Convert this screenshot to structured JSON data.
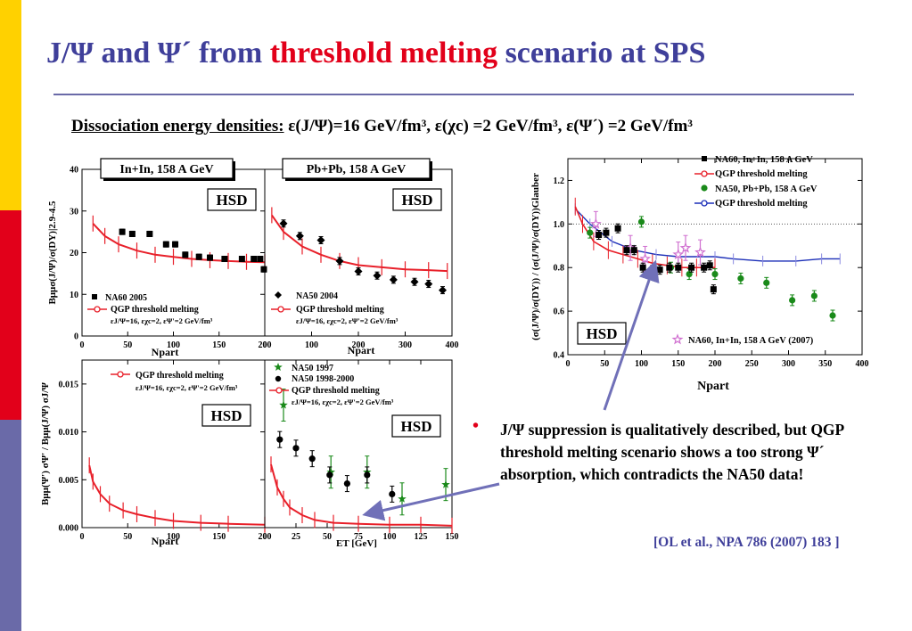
{
  "slide": {
    "title_part1": "J/Ψ and  Ψ´ from ",
    "title_red": "threshold melting",
    "title_part2": " scenario at SPS",
    "subtitle_label": "Dissociation energy densities:",
    "subtitle_values": " ε(J/Ψ)=16  GeV/fm³, ε(χc) =2 GeV/fm³,  ε(Ψ´) =2 GeV/fm³",
    "bullet_text": "J/Ψ suppression is qualitatively described,  but QGP threshold melting scenario shows a too strong Ψ´ absorption, which contradicts the NA50 data!",
    "reference": "[OL et al., NPA 786 (2007) 183 ]",
    "colors": {
      "title": "#3f3f9a",
      "accent": "#e2001a",
      "stripe": [
        "#ffd100",
        "#e2001a",
        "#6a6aa8"
      ],
      "model_line": "#e8202a",
      "glauber_model_line": "#1c2fb8",
      "na50_green": "#1a8a1a",
      "arrow": "#7070b8"
    }
  },
  "chart_data": [
    {
      "id": "inin_jpsi_dy",
      "type": "scatter",
      "panel_label": "In+In, 158 A GeV",
      "hsd_label": "HSD",
      "ylabel": "Bμμσ(J/Ψ)/σ(DY)|2.9-4.5",
      "xlabel": "Npart",
      "xlim": [
        0,
        200
      ],
      "ylim": [
        0,
        40
      ],
      "xticks": [
        0,
        50,
        100,
        150,
        200
      ],
      "yticks": [
        0,
        10,
        20,
        30,
        40
      ],
      "legend": [
        "NA60 2005",
        "QGP threshold melting"
      ],
      "legend_note": "εJ/Ψ=16, εχc=2, εΨ'=2 GeV/fm³",
      "series": [
        {
          "name": "NA60 2005",
          "marker": "square",
          "points": [
            [
              44,
              25
            ],
            [
              55,
              24.5
            ],
            [
              74,
              24.5
            ],
            [
              92,
              22
            ],
            [
              102,
              22
            ],
            [
              113,
              19.5
            ],
            [
              128,
              19
            ],
            [
              140,
              18.8
            ],
            [
              156,
              18.5
            ],
            [
              175,
              18.5
            ],
            [
              188,
              18.5
            ],
            [
              195,
              18.5
            ],
            [
              199,
              16
            ]
          ]
        },
        {
          "name": "QGP threshold melting",
          "points": [
            [
              12,
              27
            ],
            [
              25,
              24
            ],
            [
              40,
              22
            ],
            [
              60,
              20.5
            ],
            [
              80,
              19.5
            ],
            [
              100,
              19
            ],
            [
              120,
              18.5
            ],
            [
              140,
              18.2
            ],
            [
              160,
              18
            ],
            [
              180,
              17.8
            ],
            [
              200,
              17.7
            ]
          ]
        }
      ]
    },
    {
      "id": "pbpb_jpsi_dy",
      "type": "scatter",
      "panel_label": "Pb+Pb, 158 A GeV",
      "hsd_label": "HSD",
      "xlabel": "Npart",
      "xlim": [
        0,
        400
      ],
      "ylim": [
        0,
        40
      ],
      "xticks": [
        0,
        100,
        200,
        300,
        400
      ],
      "legend": [
        "NA50 2004",
        "QGP threshold melting"
      ],
      "legend_note": "εJ/Ψ=16, εχc=2, εΨ'=2 GeV/fm³",
      "series": [
        {
          "name": "NA50 2004",
          "marker": "diamond",
          "points": [
            [
              40,
              27
            ],
            [
              75,
              24
            ],
            [
              120,
              23
            ],
            [
              160,
              18
            ],
            [
              200,
              15.5
            ],
            [
              240,
              14.5
            ],
            [
              275,
              13.5
            ],
            [
              320,
              13
            ],
            [
              350,
              12.5
            ],
            [
              380,
              11
            ]
          ]
        },
        {
          "name": "QGP threshold melting",
          "points": [
            [
              15,
              29
            ],
            [
              40,
              25
            ],
            [
              80,
              21.5
            ],
            [
              120,
              19.5
            ],
            [
              160,
              18
            ],
            [
              200,
              17
            ],
            [
              250,
              16.5
            ],
            [
              300,
              16
            ],
            [
              350,
              15.8
            ],
            [
              390,
              15.6
            ]
          ]
        }
      ]
    },
    {
      "id": "inin_psiprime",
      "type": "line",
      "hsd_label": "HSD",
      "ylabel": "Bμμ(Ψ') σΨ' / Bμμ(J/Ψ) σJ/Ψ",
      "xlabel": "Npart",
      "xlim": [
        0,
        200
      ],
      "ylim": [
        0,
        0.0175
      ],
      "xticks": [
        0,
        50,
        100,
        150,
        200
      ],
      "yticks": [
        0.0,
        0.005,
        0.01,
        0.015
      ],
      "ytick_labels": [
        "0.000",
        "0.005",
        "0.010",
        "0.015"
      ],
      "legend": [
        "QGP threshold melting"
      ],
      "legend_note": "εJ/Ψ=16, εχc=2, εΨ'=2 GeV/fm³",
      "series": [
        {
          "name": "QGP threshold melting",
          "points": [
            [
              8,
              0.0065
            ],
            [
              12,
              0.0048
            ],
            [
              20,
              0.0035
            ],
            [
              30,
              0.0025
            ],
            [
              45,
              0.0018
            ],
            [
              60,
              0.0014
            ],
            [
              80,
              0.001
            ],
            [
              100,
              0.0007
            ],
            [
              130,
              0.0005
            ],
            [
              160,
              0.0004
            ],
            [
              200,
              0.0003
            ]
          ]
        }
      ]
    },
    {
      "id": "pbpb_psiprime",
      "type": "scatter",
      "hsd_label": "HSD",
      "xlabel": "ET [GeV]",
      "xlim": [
        0,
        150
      ],
      "ylim": [
        0,
        0.0175
      ],
      "xticks": [
        0,
        25,
        50,
        75,
        100,
        125,
        150
      ],
      "legend": [
        "NA50 1997",
        "NA50 1998-2000",
        "QGP threshold melting"
      ],
      "legend_note": "εJ/Ψ=16, εχc=2, εΨ'=2 GeV/fm³",
      "series": [
        {
          "name": "NA50 1997",
          "marker": "star",
          "points": [
            [
              15,
              0.0128
            ],
            [
              53,
              0.0058
            ],
            [
              82,
              0.0058
            ],
            [
              110,
              0.003
            ],
            [
              145,
              0.0045
            ]
          ]
        },
        {
          "name": "NA50 1998-2000",
          "marker": "circle",
          "points": [
            [
              12,
              0.0092
            ],
            [
              25,
              0.0083
            ],
            [
              38,
              0.0072
            ],
            [
              52,
              0.0055
            ],
            [
              66,
              0.0046
            ],
            [
              82,
              0.0055
            ],
            [
              102,
              0.0035
            ]
          ]
        },
        {
          "name": "QGP threshold melting",
          "points": [
            [
              5,
              0.0066
            ],
            [
              10,
              0.0042
            ],
            [
              15,
              0.003
            ],
            [
              20,
              0.0021
            ],
            [
              30,
              0.0013
            ],
            [
              40,
              0.0008
            ],
            [
              55,
              0.0005
            ],
            [
              75,
              0.0004
            ],
            [
              100,
              0.0003
            ],
            [
              125,
              0.0003
            ],
            [
              150,
              0.0002
            ]
          ]
        }
      ]
    },
    {
      "id": "ratio_glauber",
      "type": "scatter",
      "hsd_label": "HSD",
      "ylabel": "(σ(J/Ψ)/σ(DY)) / (σ(J/Ψ)/σ(DY))Glauber",
      "xlabel": "Npart",
      "xlim": [
        0,
        400
      ],
      "ylim": [
        0.4,
        1.3
      ],
      "xticks": [
        0,
        50,
        100,
        150,
        200,
        250,
        300,
        350,
        400
      ],
      "yticks": [
        0.4,
        0.6,
        0.8,
        1.0,
        1.2
      ],
      "ytick_labels": [
        "0.4",
        "0.6",
        "0.8",
        "1.0",
        "1.2"
      ],
      "legend": [
        "NA60, In+In,   158 A GeV",
        "QGP threshold melting",
        "NA50, Pb+Pb, 158 A GeV",
        "QGP threshold melting"
      ],
      "series": [
        {
          "name": "NA60, In+In,   158 A GeV",
          "marker": "square",
          "points": [
            [
              42,
              0.95
            ],
            [
              52,
              0.96
            ],
            [
              68,
              0.98
            ],
            [
              80,
              0.88
            ],
            [
              90,
              0.88
            ],
            [
              102,
              0.8
            ],
            [
              115,
              0.79
            ],
            [
              125,
              0.79
            ],
            [
              138,
              0.8
            ],
            [
              150,
              0.8
            ],
            [
              168,
              0.8
            ],
            [
              185,
              0.8
            ],
            [
              193,
              0.81
            ],
            [
              198,
              0.7
            ]
          ]
        },
        {
          "name": "QGP threshold melting",
          "line_color": "red",
          "points": [
            [
              10,
              1.08
            ],
            [
              20,
              1.0
            ],
            [
              35,
              0.92
            ],
            [
              55,
              0.88
            ],
            [
              75,
              0.86
            ],
            [
              95,
              0.84
            ],
            [
              115,
              0.82
            ],
            [
              135,
              0.81
            ],
            [
              155,
              0.8
            ],
            [
              175,
              0.8
            ],
            [
              200,
              0.8
            ]
          ]
        },
        {
          "name": "NA50, Pb+Pb, 158 A GeV",
          "marker": "circle",
          "points": [
            [
              30,
              0.96
            ],
            [
              100,
              1.01
            ],
            [
              140,
              0.8
            ],
            [
              165,
              0.77
            ],
            [
              200,
              0.77
            ],
            [
              235,
              0.75
            ],
            [
              270,
              0.73
            ],
            [
              305,
              0.65
            ],
            [
              335,
              0.67
            ],
            [
              360,
              0.58
            ]
          ]
        },
        {
          "name": "QGP threshold melting",
          "line_color": "blue",
          "points": [
            [
              10,
              1.07
            ],
            [
              30,
              1.0
            ],
            [
              60,
              0.92
            ],
            [
              90,
              0.88
            ],
            [
              120,
              0.86
            ],
            [
              150,
              0.85
            ],
            [
              180,
              0.85
            ],
            [
              200,
              0.85
            ],
            [
              225,
              0.84
            ],
            [
              265,
              0.83
            ],
            [
              310,
              0.83
            ],
            [
              345,
              0.84
            ],
            [
              370,
              0.84
            ]
          ]
        },
        {
          "name": "NA60, In+In, 158 A GeV (2007)",
          "marker": "open-star",
          "points": [
            [
              38,
              1.0
            ],
            [
              85,
              0.89
            ],
            [
              105,
              0.84
            ],
            [
              150,
              0.86
            ],
            [
              160,
              0.89
            ],
            [
              180,
              0.87
            ]
          ]
        }
      ]
    }
  ]
}
